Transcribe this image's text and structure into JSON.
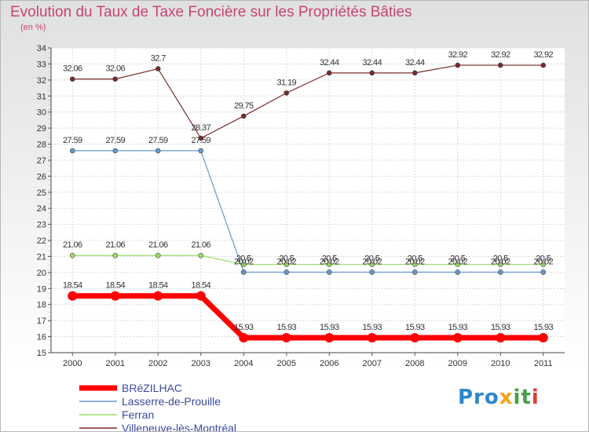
{
  "title": "Evolution du Taux de Taxe Foncière sur les Propriétés Bâties",
  "unit_label": "(en %)",
  "logo": {
    "text": "Proxiti",
    "p1": "Pro",
    "p2": "x",
    "p3": "it",
    "p4": "i"
  },
  "chart_data": {
    "type": "line",
    "title": "Evolution du Taux de Taxe Foncière sur les Propriétés Bâties",
    "ylabel": "(en %)",
    "xlabel": "",
    "ylim": [
      15,
      34
    ],
    "yticks": [
      "15",
      "16",
      "17",
      "18",
      "19",
      "20",
      "21",
      "22",
      "23",
      "24",
      "25",
      "26",
      "27",
      "28",
      "29",
      "30",
      "31",
      "32",
      "33",
      "34"
    ],
    "x": [
      "2000",
      "2001",
      "2002",
      "2003",
      "2004",
      "2005",
      "2006",
      "2007",
      "2008",
      "2009",
      "2010",
      "2011"
    ],
    "grid": true,
    "legend_position": "bottom-left",
    "series": [
      {
        "name": "BRéZILHAC",
        "color": "#ff0000",
        "values": [
          18.54,
          18.54,
          18.54,
          18.54,
          15.93,
          15.93,
          15.93,
          15.93,
          15.93,
          15.93,
          15.93,
          15.93
        ],
        "labels": [
          "18.54",
          "18.54",
          "18.54",
          "18.54",
          "15.93",
          "15.93",
          "15.93",
          "15.93",
          "15.93",
          "15.93",
          "15.93",
          "15.93"
        ]
      },
      {
        "name": "Lasserre-de-Prouille",
        "color": "#6699cc",
        "values": [
          27.59,
          27.59,
          27.59,
          27.59,
          20.02,
          20.02,
          20.02,
          20.02,
          20.02,
          20.02,
          20.02,
          20.02
        ],
        "labels": [
          "27.59",
          "27.59",
          "27.59",
          "27.59",
          "20.02",
          "20.02",
          "20.02",
          "20.02",
          "20.02",
          "20.02",
          "20.02",
          "20.02"
        ]
      },
      {
        "name": "Ferran",
        "color": "#99dd66",
        "values": [
          21.06,
          21.06,
          21.06,
          21.06,
          20.5,
          20.5,
          20.5,
          20.5,
          20.5,
          20.5,
          20.5,
          20.5
        ],
        "labels": [
          "21.06",
          "21.06",
          "21.06",
          "21.06",
          "20.5",
          "20.5",
          "20.5",
          "20.5",
          "20.5",
          "20.5",
          "20.5",
          "20.5"
        ]
      },
      {
        "name": "Villeneuve-lès-Montréal",
        "color": "#7a2a2a",
        "values": [
          32.06,
          32.06,
          32.7,
          28.37,
          29.75,
          31.19,
          32.44,
          32.44,
          32.44,
          32.92,
          32.92,
          32.92
        ],
        "labels": [
          "32.06",
          "32.06",
          "32.7",
          "28.37",
          "29.75",
          "31.19",
          "32.44",
          "32.44",
          "32.44",
          "32.92",
          "32.92",
          "32.92"
        ]
      }
    ]
  }
}
